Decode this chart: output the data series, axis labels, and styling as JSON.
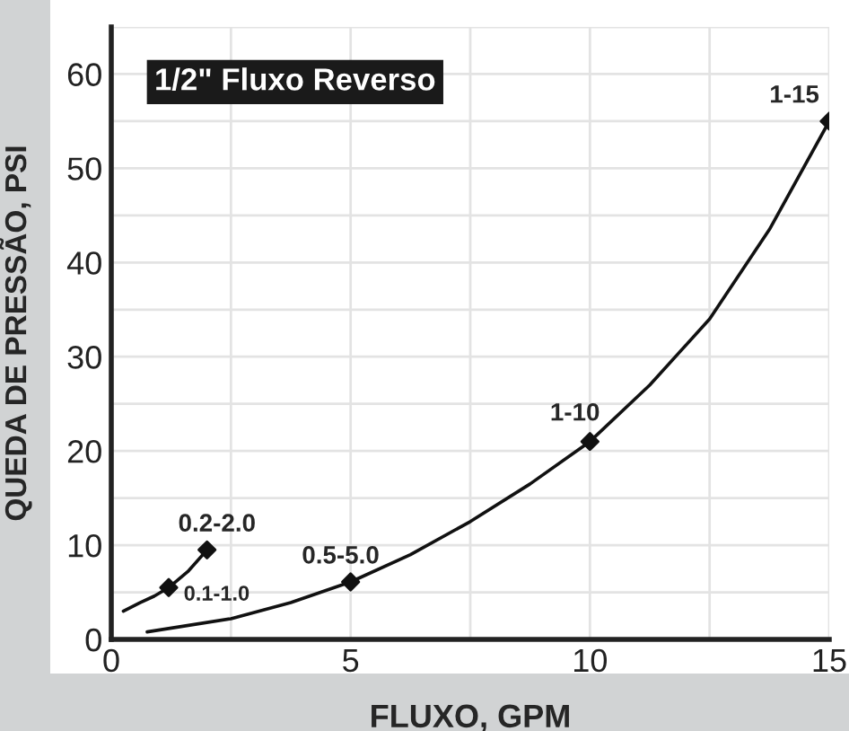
{
  "chart_data": {
    "type": "line",
    "title": "1/2\" Fluxo Reverso",
    "xlabel": "FLUXO, GPM",
    "ylabel": "QUEDA DE PRESSÃO, PSI",
    "series": [
      {
        "color": "#111111",
        "x": [
          0.25,
          0.6,
          0.9,
          1.2,
          1.6,
          2.0
        ],
        "values": [
          3.0,
          3.9,
          4.6,
          5.5,
          7.2,
          9.5
        ]
      },
      {
        "color": "#111111",
        "x": [
          0.75,
          2.5,
          3.75,
          5,
          6.25,
          7.5,
          8.75,
          10,
          11.25,
          12.5,
          13.75,
          15
        ],
        "values": [
          0.8,
          2.2,
          3.9,
          6.1,
          9,
          12.5,
          16.5,
          21,
          27,
          34,
          43.5,
          55
        ]
      },
      {
        "type": "scatter",
        "color": "#111111",
        "marker": "diamond",
        "x": [
          1.2,
          2.0,
          5,
          10,
          15
        ],
        "values": [
          5.5,
          9.5,
          6.1,
          21,
          55
        ]
      }
    ],
    "annotations": [
      {
        "text": "0.1-1.0",
        "x": 1.2,
        "y": 5.5
      },
      {
        "text": "0.2-2.0",
        "x": 2.0,
        "y": 9.5
      },
      {
        "text": "0.5-5.0",
        "x": 5,
        "y": 6.1
      },
      {
        "text": "1-10",
        "x": 10,
        "y": 21
      },
      {
        "text": "1-15",
        "x": 15,
        "y": 55
      }
    ],
    "xlim": [
      0,
      15
    ],
    "ylim": [
      0,
      65
    ],
    "xticks": [
      0,
      {
        "value": 2.5,
        "label": null
      },
      5,
      {
        "value": 7.5,
        "label": null
      },
      10,
      {
        "value": 12.5,
        "label": null
      },
      15
    ],
    "yticks": [
      0,
      {
        "value": 5,
        "label": null
      },
      10,
      {
        "value": 15,
        "label": null
      },
      20,
      {
        "value": 25,
        "label": null
      },
      30,
      {
        "value": 35,
        "label": null
      },
      40,
      {
        "value": 45,
        "label": null
      },
      50,
      {
        "value": 55,
        "label": null
      },
      60,
      {
        "value": 65,
        "label": null
      }
    ],
    "grid": true
  }
}
